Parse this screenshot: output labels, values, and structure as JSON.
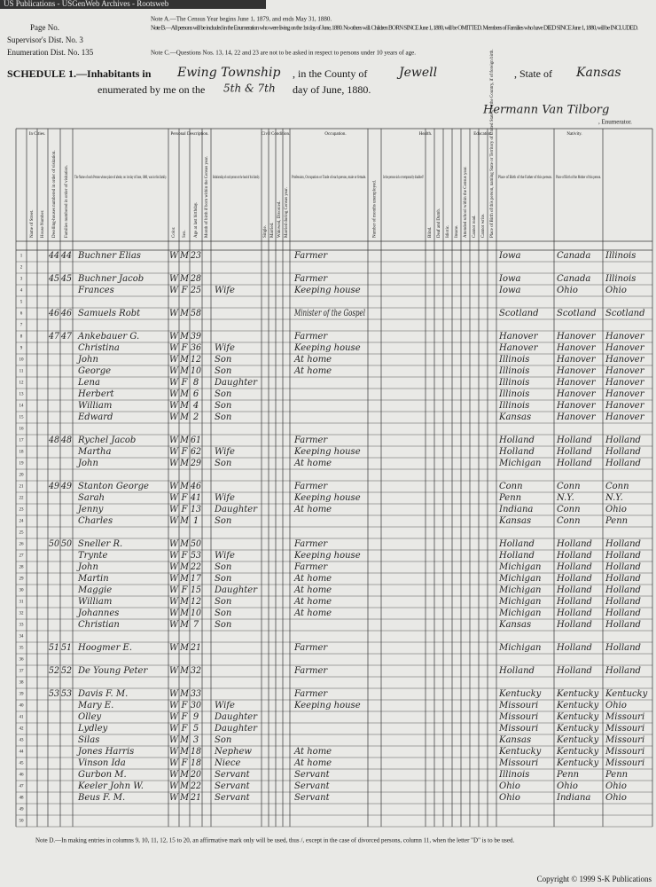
{
  "banner": "US Publications - USGenWeb Archives - Rootsweb",
  "header": {
    "page_no": "Page No.",
    "supervisor": "Supervisor's Dist. No. 3",
    "enumeration": "Enumeration Dist. No. 135",
    "note_a": "Note A.—The Census Year begins June 1, 1879, and ends May 31, 1880.",
    "note_b": "Note B.—All persons will be included in the Enumeration who were living on the 1st day of June, 1880. No others will. Children BORN SINCE June 1, 1880, will be OMITTED. Members of Families who have DIED SINCE June 1, 1880, will be INCLUDED.",
    "note_c": "Note C.—Questions Nos. 13, 14, 22 and 23 are not to be asked in respect to persons under 10 years of age.",
    "schedule": "SCHEDULE 1.—Inhabitants in",
    "township": "Ewing Township",
    "county_label": ", in the County of",
    "county": "Jewell",
    "state_label": ", State of",
    "state": "Kansas",
    "enumerated": "enumerated by me on the",
    "days": "5th & 7th",
    "month": "day of June, 1880.",
    "enumerator": "Hermann Van Tilborg",
    "enumerator_label": ", Enumerator."
  },
  "groups": [
    "In Cities.",
    "Personal Description.",
    "Civil Condition.",
    "Occupation.",
    "Health.",
    "Education.",
    "Nativity."
  ],
  "columns": [
    "Name of Street.",
    "House Number.",
    "Dwelling-houses numbered in order of visitation.",
    "Families numbered in order of visitation.",
    "The Name of each Person whose place of abode, on 1st day of June, 1880, was in this family.",
    "Color.",
    "Sex.",
    "Age at last birthday.",
    "Month of birth if born within the Census year.",
    "Relationship of each person to the head of this family.",
    "Single.",
    "Married.",
    "Widowed, Divorced.",
    "Married during Census year.",
    "Profession, Occupation or Trade of each person, male or female.",
    "Number of months unemployed.",
    "Is the person sick or temporarily disabled?",
    "Blind.",
    "Deaf and Dumb.",
    "Idiotic.",
    "Insane.",
    "Attended school within the Census year.",
    "Cannot read.",
    "Cannot write.",
    "Place of Birth of this person, naming State or Territory of United States, or the Country, if of foreign birth.",
    "Place of Birth of the Father of this person.",
    "Place of Birth of the Mother of this person."
  ],
  "line_numbers": [
    1,
    2,
    3,
    4,
    5,
    6,
    7,
    8,
    9,
    10,
    11,
    12,
    13,
    14,
    15,
    16,
    17,
    18,
    19,
    20,
    21,
    22,
    23,
    24,
    25,
    26,
    27,
    28,
    29,
    30,
    31,
    32,
    33,
    34,
    35,
    36,
    37,
    38,
    39,
    40,
    41,
    42,
    43,
    44,
    45,
    46,
    47,
    48,
    49,
    50
  ],
  "rows": [
    [
      44,
      44,
      "Buchner Elias",
      "W",
      "M",
      23,
      null,
      "Farmer",
      "Iowa",
      "Canada",
      "Illinois"
    ],
    null,
    [
      45,
      45,
      "Buchner Jacob",
      "W",
      "M",
      28,
      null,
      "Farmer",
      "Iowa",
      "Canada",
      "Illinois"
    ],
    [
      null,
      null,
      "Frances",
      "W",
      "F",
      25,
      "Wife",
      "Keeping house",
      "Iowa",
      "Ohio",
      "Ohio"
    ],
    null,
    [
      46,
      46,
      "Samuels Robt",
      "W",
      "M",
      58,
      null,
      "Minister of the Gospel",
      "Scotland",
      "Scotland",
      "Scotland"
    ],
    null,
    [
      47,
      47,
      "Ankebauer G.",
      "W",
      "M",
      39,
      null,
      "Farmer",
      "Hanover",
      "Hanover",
      "Hanover"
    ],
    [
      null,
      null,
      "Christina",
      "W",
      "F",
      36,
      "Wife",
      "Keeping house",
      "Hanover",
      "Hanover",
      "Hanover"
    ],
    [
      null,
      null,
      "John",
      "W",
      "M",
      12,
      "Son",
      "At home",
      "Illinois",
      "Hanover",
      "Hanover"
    ],
    [
      null,
      null,
      "George",
      "W",
      "M",
      10,
      "Son",
      "At home",
      "Illinois",
      "Hanover",
      "Hanover"
    ],
    [
      null,
      null,
      "Lena",
      "W",
      "F",
      8,
      "Daughter",
      null,
      "Illinois",
      "Hanover",
      "Hanover"
    ],
    [
      null,
      null,
      "Herbert",
      "W",
      "M",
      6,
      "Son",
      null,
      "Illinois",
      "Hanover",
      "Hanover"
    ],
    [
      null,
      null,
      "William",
      "W",
      "M",
      4,
      "Son",
      null,
      "Illinois",
      "Hanover",
      "Hanover"
    ],
    [
      null,
      null,
      "Edward",
      "W",
      "M",
      2,
      "Son",
      null,
      "Kansas",
      "Hanover",
      "Hanover"
    ],
    null,
    [
      48,
      48,
      "Rychel Jacob",
      "W",
      "M",
      61,
      null,
      "Farmer",
      "Holland",
      "Holland",
      "Holland"
    ],
    [
      null,
      null,
      "Martha",
      "W",
      "F",
      62,
      "Wife",
      "Keeping house",
      "Holland",
      "Holland",
      "Holland"
    ],
    [
      null,
      null,
      "John",
      "W",
      "M",
      29,
      "Son",
      "At home",
      "Michigan",
      "Holland",
      "Holland"
    ],
    null,
    [
      49,
      49,
      "Stanton George",
      "W",
      "M",
      46,
      null,
      "Farmer",
      "Conn",
      "Conn",
      "Conn"
    ],
    [
      null,
      null,
      "Sarah",
      "W",
      "F",
      41,
      "Wife",
      "Keeping house",
      "Penn",
      "N.Y.",
      "N.Y."
    ],
    [
      null,
      null,
      "Jenny",
      "W",
      "F",
      13,
      "Daughter",
      "At home",
      "Indiana",
      "Conn",
      "Ohio"
    ],
    [
      null,
      null,
      "Charles",
      "W",
      "M",
      1,
      "Son",
      null,
      "Kansas",
      "Conn",
      "Penn"
    ],
    null,
    [
      50,
      50,
      "Sneller R.",
      "W",
      "M",
      50,
      null,
      "Farmer",
      "Holland",
      "Holland",
      "Holland"
    ],
    [
      null,
      null,
      "Trynte",
      "W",
      "F",
      53,
      "Wife",
      "Keeping house",
      "Holland",
      "Holland",
      "Holland"
    ],
    [
      null,
      null,
      "John",
      "W",
      "M",
      22,
      "Son",
      "Farmer",
      "Michigan",
      "Holland",
      "Holland"
    ],
    [
      null,
      null,
      "Martin",
      "W",
      "M",
      17,
      "Son",
      "At home",
      "Michigan",
      "Holland",
      "Holland"
    ],
    [
      null,
      null,
      "Maggie",
      "W",
      "F",
      15,
      "Daughter",
      "At home",
      "Michigan",
      "Holland",
      "Holland"
    ],
    [
      null,
      null,
      "William",
      "W",
      "M",
      12,
      "Son",
      "At home",
      "Michigan",
      "Holland",
      "Holland"
    ],
    [
      null,
      null,
      "Johannes",
      "W",
      "M",
      10,
      "Son",
      "At home",
      "Michigan",
      "Holland",
      "Holland"
    ],
    [
      null,
      null,
      "Christian",
      "W",
      "M",
      7,
      "Son",
      null,
      "Kansas",
      "Holland",
      "Holland"
    ],
    null,
    [
      51,
      51,
      "Hoogmer E.",
      "W",
      "M",
      21,
      null,
      "Farmer",
      "Michigan",
      "Holland",
      "Holland"
    ],
    null,
    [
      52,
      52,
      "De Young Peter",
      "W",
      "M",
      32,
      null,
      "Farmer",
      "Holland",
      "Holland",
      "Holland"
    ],
    null,
    [
      53,
      53,
      "Davis F. M.",
      "W",
      "M",
      33,
      null,
      "Farmer",
      "Kentucky",
      "Kentucky",
      "Kentucky"
    ],
    [
      null,
      null,
      "Mary E.",
      "W",
      "F",
      30,
      "Wife",
      "Keeping house",
      "Missouri",
      "Kentucky",
      "Ohio"
    ],
    [
      null,
      null,
      "Olley",
      "W",
      "F",
      9,
      "Daughter",
      null,
      "Missouri",
      "Kentucky",
      "Missouri"
    ],
    [
      null,
      null,
      "Lydley",
      "W",
      "F",
      5,
      "Daughter",
      null,
      "Missouri",
      "Kentucky",
      "Missouri"
    ],
    [
      null,
      null,
      "Silas",
      "W",
      "M",
      3,
      "Son",
      null,
      "Kansas",
      "Kentucky",
      "Missouri"
    ],
    [
      null,
      null,
      "Jones Harris",
      "W",
      "M",
      18,
      "Nephew",
      "At home",
      "Kentucky",
      "Kentucky",
      "Missouri"
    ],
    [
      null,
      null,
      "Vinson Ida",
      "W",
      "F",
      18,
      "Niece",
      "At home",
      "Missouri",
      "Kentucky",
      "Missouri"
    ],
    [
      null,
      null,
      "Gurbon M.",
      "W",
      "M",
      20,
      "Servant",
      "Servant",
      "Illinois",
      "Penn",
      "Penn"
    ],
    [
      null,
      null,
      "Keeler John W.",
      "W",
      "M",
      22,
      "Servant",
      "Servant",
      "Ohio",
      "Ohio",
      "Ohio"
    ],
    [
      null,
      null,
      "Beus F. M.",
      "W",
      "M",
      21,
      "Servant",
      "Servant",
      "Ohio",
      "Indiana",
      "Ohio"
    ],
    null,
    null
  ],
  "footnote": "Note D.—In making entries in columns 9, 10, 11, 12, 15 to 20, an affirmative mark only will be used, thus /, except in the case of divorced persons, column 11, when the letter \"D\" is to be used.",
  "copyright": "Copyright © 1999 S-K Publications"
}
